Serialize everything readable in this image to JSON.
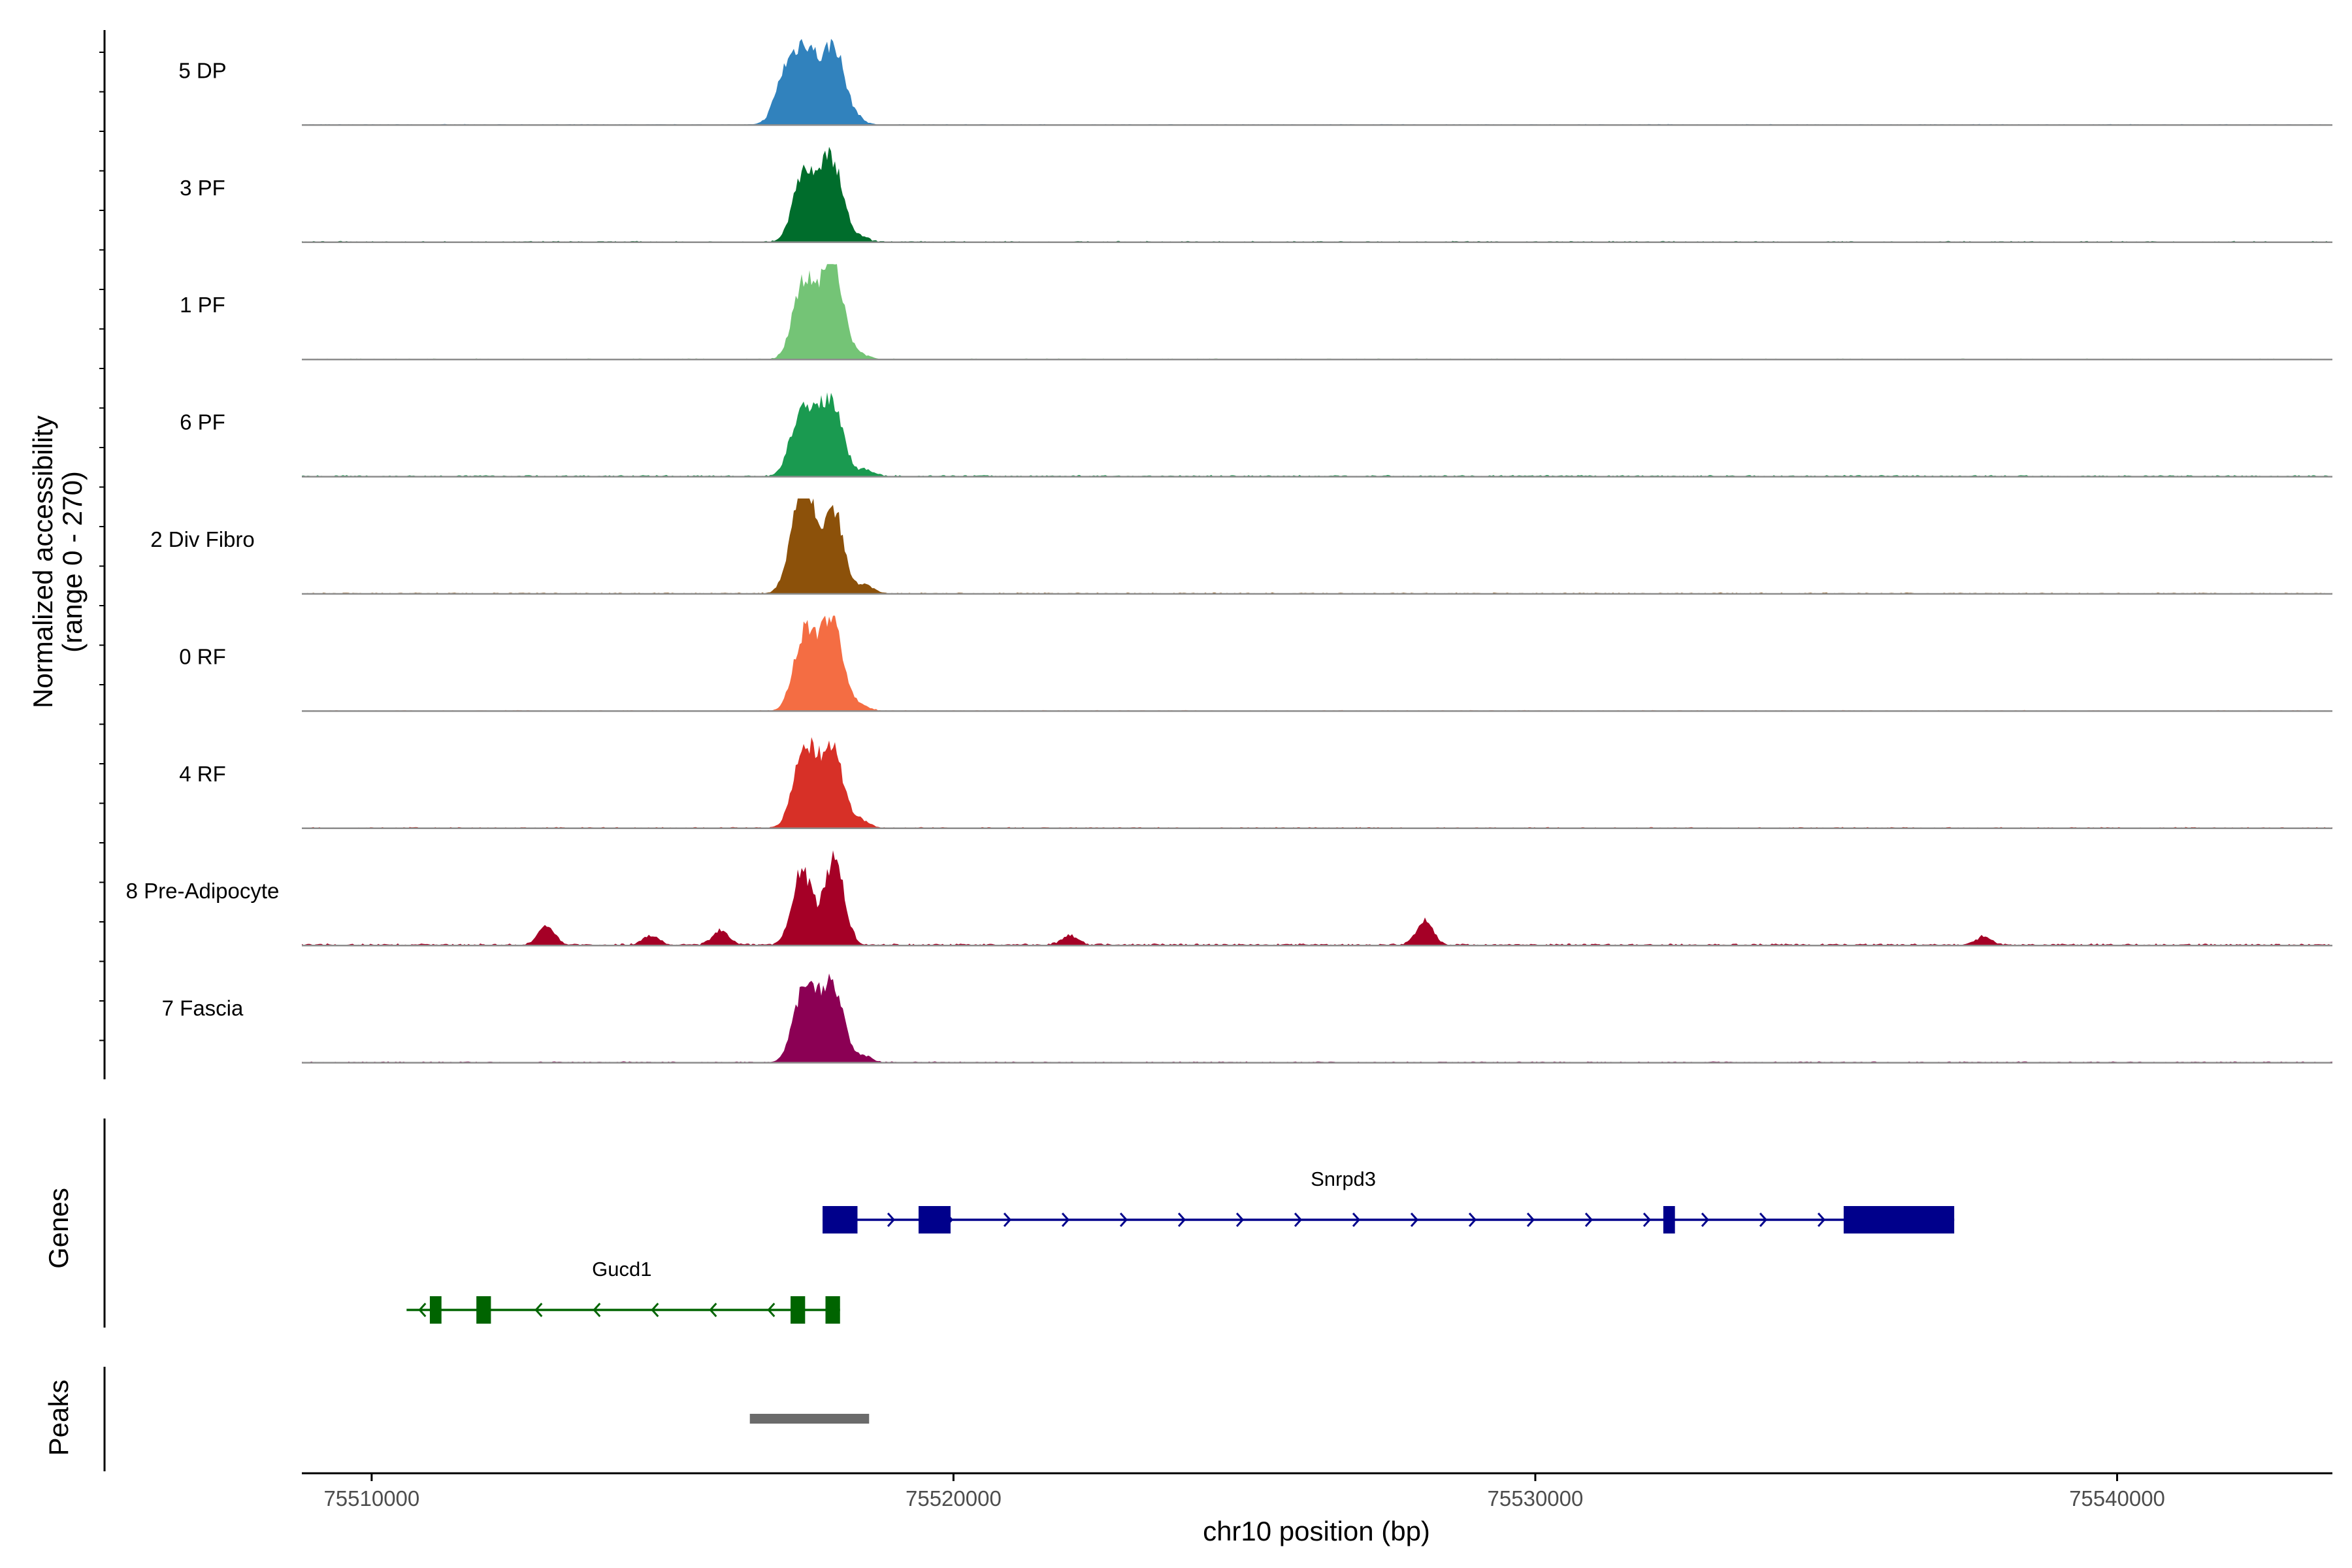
{
  "chart_data": {
    "type": "area",
    "title": "",
    "xlabel": "chr10 position (bp)",
    "ylabel": "Normalized accessibility",
    "ylabel_range": "(range 0 - 270)",
    "ylim": [
      0,
      270
    ],
    "xlim": [
      75508800,
      75543700
    ],
    "x_ticks": [
      {
        "value": 75510000,
        "label": "75510000"
      },
      {
        "value": 75520000,
        "label": "75520000"
      },
      {
        "value": 75530000,
        "label": "75530000"
      },
      {
        "value": 75540000,
        "label": "75540000"
      }
    ],
    "series": [
      {
        "name": "5 DP",
        "color": "#3182bd",
        "peaks": [
          [
            75517100,
            150
          ],
          [
            75517400,
            170
          ],
          [
            75517600,
            120
          ],
          [
            75517950,
            240
          ],
          [
            75518300,
            25
          ]
        ],
        "background": 3
      },
      {
        "name": "3 PF",
        "color": "#006d2c",
        "peaks": [
          [
            75517400,
            200
          ],
          [
            75517700,
            120
          ],
          [
            75517950,
            220
          ],
          [
            75518400,
            15
          ]
        ],
        "background": 4
      },
      {
        "name": "1 PF",
        "color": "#74c476",
        "peaks": [
          [
            75517400,
            230
          ],
          [
            75517700,
            110
          ],
          [
            75517950,
            280
          ],
          [
            75518400,
            15
          ]
        ],
        "background": 3
      },
      {
        "name": "6 PF",
        "color": "#1a9a50",
        "peaks": [
          [
            75517350,
            180
          ],
          [
            75517650,
            140
          ],
          [
            75517950,
            210
          ],
          [
            75518500,
            20
          ]
        ],
        "background": 5
      },
      {
        "name": "2 Div Fibro",
        "color": "#8c510a",
        "peaks": [
          [
            75517300,
            165
          ],
          [
            75517500,
            260
          ],
          [
            75517950,
            255
          ],
          [
            75518500,
            25
          ]
        ],
        "background": 4
      },
      {
        "name": "0 RF",
        "color": "#f46d43",
        "peaks": [
          [
            75517400,
            200
          ],
          [
            75517650,
            130
          ],
          [
            75517950,
            260
          ],
          [
            75518400,
            20
          ]
        ],
        "background": 3
      },
      {
        "name": "4 RF",
        "color": "#d73027",
        "peaks": [
          [
            75517400,
            210
          ],
          [
            75517650,
            120
          ],
          [
            75517950,
            230
          ],
          [
            75518400,
            25
          ]
        ],
        "background": 4
      },
      {
        "name": "8 Pre-Adipocyte",
        "color": "#a50026",
        "peaks": [
          [
            75513000,
            60
          ],
          [
            75514800,
            30
          ],
          [
            75516000,
            45
          ],
          [
            75517400,
            235
          ],
          [
            75517950,
            270
          ],
          [
            75522000,
            30
          ],
          [
            75528100,
            80
          ],
          [
            75537700,
            25
          ]
        ],
        "background": 6
      },
      {
        "name": "7 Fascia",
        "color": "#8b0054",
        "peaks": [
          [
            75517400,
            200
          ],
          [
            75517650,
            110
          ],
          [
            75517950,
            230
          ],
          [
            75518450,
            20
          ]
        ],
        "background": 4
      }
    ],
    "genes_label": "Genes",
    "peaks_label": "Peaks",
    "genes": [
      {
        "name": "Snrpd3",
        "strand": "+",
        "start": 75517750,
        "end": 75537200,
        "color": "#00008b",
        "exons": [
          [
            75517750,
            75518350
          ],
          [
            75519400,
            75519950
          ],
          [
            75532200,
            75532400
          ],
          [
            75535300,
            75537200
          ]
        ]
      },
      {
        "name": "Gucd1",
        "strand": "-",
        "start": 75510600,
        "end": 75518050,
        "color": "#006400",
        "exons": [
          [
            75511000,
            75511200
          ],
          [
            75511800,
            75512050
          ],
          [
            75517200,
            75517450
          ],
          [
            75517800,
            75518050
          ]
        ]
      }
    ],
    "peak_regions": [
      {
        "start": 75516500,
        "end": 75518550,
        "color": "#6b6b6b"
      }
    ]
  }
}
